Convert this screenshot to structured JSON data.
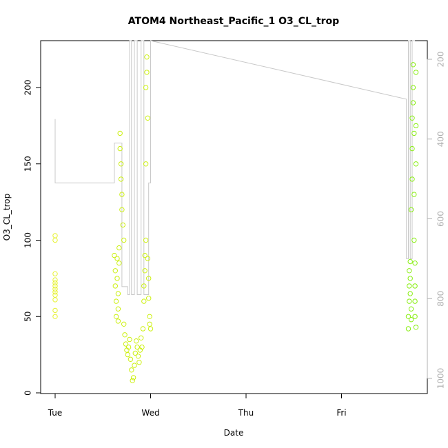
{
  "chart_data": {
    "type": "scatter",
    "title": "ATOM4 Northeast_Pacific_1 O3_CL_trop",
    "xlabel": "Date",
    "ylabel": "O3_CL_trop",
    "x_ticks": [
      "Tue",
      "Wed",
      "Thu",
      "Fri"
    ],
    "x_range_days": [
      -0.1,
      3.9
    ],
    "y_ticks": [
      0,
      50,
      100,
      150,
      200
    ],
    "ylim": [
      0,
      230
    ],
    "y2_ticks": [
      200,
      400,
      600,
      800,
      1000
    ],
    "y2_range_reversed": [
      1040,
      140
    ],
    "colors": {
      "points_early": "#e6f230",
      "points_mid": "#ccf010",
      "points_late": "#88ee10",
      "line": "#c8c8c8",
      "right_axis": "#b0b0b0"
    },
    "series": [
      {
        "values_x_days": [
          0.0,
          0.0,
          0.0,
          0.0,
          0.0,
          0.0,
          0.0,
          0.0,
          0.0,
          0.0,
          0.0,
          0.0
        ],
        "values": [
          50,
          54,
          61,
          64,
          66,
          68,
          70,
          72,
          74,
          78,
          100,
          103
        ]
      },
      {
        "values_x_days": [
          0.62,
          0.63,
          0.63,
          0.64,
          0.64,
          0.65,
          0.65,
          0.66,
          0.66,
          0.66,
          0.67,
          0.67,
          0.68,
          0.68,
          0.69,
          0.69,
          0.7,
          0.7,
          0.71,
          0.72,
          0.72,
          0.73,
          0.74,
          0.75,
          0.76,
          0.77,
          0.78,
          0.79,
          0.8,
          0.81,
          0.82,
          0.83,
          0.84,
          0.85,
          0.86,
          0.87,
          0.88,
          0.89,
          0.9,
          0.91,
          0.92,
          0.93,
          0.93,
          0.94,
          0.94,
          0.95,
          0.95,
          0.95,
          0.96,
          0.96,
          0.97,
          0.97,
          0.98,
          0.98,
          0.99,
          0.99,
          1.0
        ],
        "values": [
          90,
          80,
          70,
          60,
          50,
          88,
          75,
          65,
          55,
          47,
          95,
          85,
          170,
          160,
          150,
          140,
          130,
          120,
          110,
          100,
          45,
          38,
          32,
          28,
          25,
          30,
          35,
          22,
          15,
          8,
          10,
          18,
          26,
          34,
          30,
          24,
          20,
          28,
          36,
          30,
          42,
          60,
          70,
          80,
          90,
          100,
          150,
          200,
          220,
          210,
          180,
          88,
          75,
          62,
          50,
          45,
          42
        ]
      },
      {
        "values_x_days": [
          3.7,
          3.7,
          3.71,
          3.71,
          3.71,
          3.72,
          3.72,
          3.72,
          3.73,
          3.73,
          3.73,
          3.74,
          3.74,
          3.74,
          3.75,
          3.75,
          3.75,
          3.76,
          3.76,
          3.76,
          3.77,
          3.77,
          3.77,
          3.77,
          3.78,
          3.78,
          3.78,
          3.78
        ],
        "values": [
          42,
          50,
          60,
          70,
          80,
          86,
          75,
          65,
          55,
          48,
          120,
          140,
          160,
          180,
          200,
          215,
          190,
          170,
          130,
          100,
          85,
          70,
          60,
          50,
          43,
          210,
          175,
          150
        ]
      }
    ],
    "line_series": {
      "values_x_days": [
        0.0,
        0.0,
        0.0,
        0.62,
        0.62,
        0.7,
        0.7,
        0.76,
        0.76,
        0.78,
        0.78,
        0.8,
        0.8,
        0.83,
        0.83,
        0.86,
        0.86,
        0.9,
        0.9,
        0.93,
        0.93,
        0.98,
        0.98,
        1.0,
        1.0,
        3.68,
        3.68,
        3.7,
        3.7,
        3.72,
        3.72,
        3.74,
        3.74,
        3.77
      ],
      "values_pressure": [
        510,
        350,
        510,
        510,
        410,
        410,
        770,
        770,
        790,
        790,
        140,
        140,
        790,
        790,
        140,
        140,
        790,
        790,
        140,
        140,
        790,
        790,
        510,
        510,
        140,
        300,
        700,
        700,
        140,
        140,
        700,
        700,
        140,
        140
      ]
    }
  }
}
